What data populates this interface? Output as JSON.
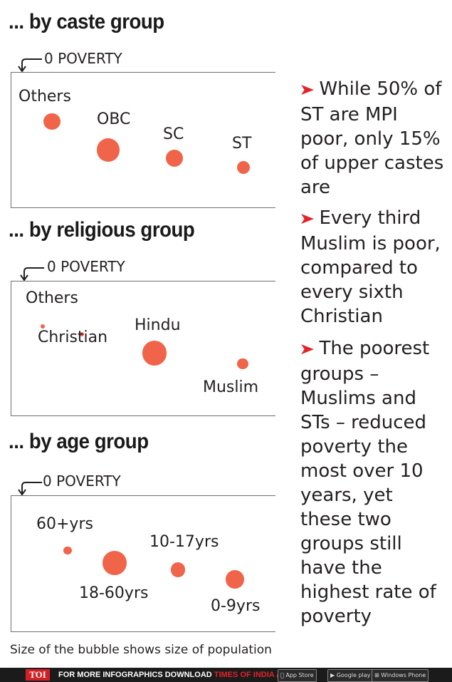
{
  "colors": {
    "bubble": "#f0644a",
    "frame": "#6d6e71",
    "marker": "#e2232a"
  },
  "zero_poverty_label": "0 POVERTY",
  "sections": [
    {
      "title": "... by caste group"
    },
    {
      "title": "... by religious group"
    },
    {
      "title": "... by age group"
    }
  ],
  "side_notes": [
    "While 50% of ST are MPI poor, only 15% of upper castes are",
    "Every third Muslim is poor, compared to every sixth Christian",
    "The poorest groups – Muslims and STs – reduced poverty the most over 10 years, yet these two groups still have the highest rate of poverty"
  ],
  "footnote": "Size of the bubble shows size of population",
  "footer": {
    "logo": "TOI",
    "text_pre": "FOR MORE  INFOGRAPHICS DOWNLOAD ",
    "text_accent": "TIMES OF INDIA APP",
    "app_store": "App Store",
    "google_play": "Google play",
    "windows_phone": "Windows Phone"
  },
  "chart_data": [
    {
      "type": "bubble",
      "title": "... by caste group",
      "y_axis_label": "0 POVERTY",
      "points": [
        {
          "label": "Others",
          "relative_depth": 0.37,
          "relative_size": 0.48
        },
        {
          "label": "OBC",
          "relative_depth": 0.58,
          "relative_size": 0.68
        },
        {
          "label": "SC",
          "relative_depth": 0.64,
          "relative_size": 0.5
        },
        {
          "label": "ST",
          "relative_depth": 0.71,
          "relative_size": 0.38
        }
      ]
    },
    {
      "type": "bubble",
      "title": "... by religious group",
      "y_axis_label": "0 POVERTY",
      "points": [
        {
          "label": "Others",
          "relative_depth": 0.34,
          "relative_size": 0.14
        },
        {
          "label": "Christian",
          "relative_depth": 0.4,
          "relative_size": 0.12
        },
        {
          "label": "Hindu",
          "relative_depth": 0.54,
          "relative_size": 0.72
        },
        {
          "label": "Muslim",
          "relative_depth": 0.62,
          "relative_size": 0.33
        }
      ]
    },
    {
      "type": "bubble",
      "title": "... by age group",
      "y_axis_label": "0 POVERTY",
      "points": [
        {
          "label": "60+yrs",
          "relative_depth": 0.41,
          "relative_size": 0.23
        },
        {
          "label": "18-60yrs",
          "relative_depth": 0.5,
          "relative_size": 0.7
        },
        {
          "label": "10-17yrs",
          "relative_depth": 0.55,
          "relative_size": 0.42
        },
        {
          "label": "0-9yrs",
          "relative_depth": 0.62,
          "relative_size": 0.53
        }
      ]
    }
  ]
}
